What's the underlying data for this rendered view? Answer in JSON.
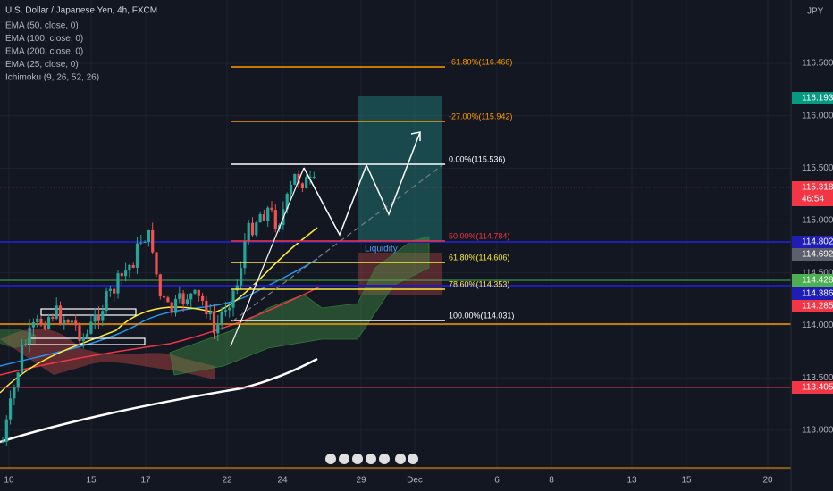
{
  "header": {
    "title": "U.S. Dollar / Japanese Yen, 4h, FXCM",
    "indicators": [
      "EMA (50, close, 0)",
      "EMA (100, close, 0)",
      "EMA (200, close, 0)",
      "EMA (25, close, 0)",
      "Ichimoku (9, 26, 52, 26)"
    ]
  },
  "currency": "JPY",
  "price_axis": [
    "116.500",
    "116.000",
    "115.500",
    "115.000",
    "114.500",
    "114.000",
    "113.500",
    "113.000"
  ],
  "price_tags": [
    {
      "label": "116.193",
      "color": "#089981"
    },
    {
      "label": "115.318",
      "color": "#f23645",
      "countdown": "46:54"
    },
    {
      "label": "114.802",
      "color": "#1e1eb4"
    },
    {
      "label": "114.692",
      "color": "#5d606b"
    },
    {
      "label": "114.428",
      "color": "#4caf50"
    },
    {
      "label": "114.386",
      "color": "#1e1eb4"
    },
    {
      "label": "114.285",
      "color": "#f23645"
    },
    {
      "label": "113.405",
      "color": "#f23645"
    }
  ],
  "fib_levels": [
    {
      "label": "-61.80%(116.466)",
      "color": "#ff9800"
    },
    {
      "label": "-27.00%(115.942)",
      "color": "#ff9800"
    },
    {
      "label": "0.00%(115.536)",
      "color": "#ffffff"
    },
    {
      "label": "50.00%(114.784)",
      "color": "#f23645"
    },
    {
      "label": "61.80%(114.606)",
      "color": "#ffeb3b"
    },
    {
      "label": "78.60%(114.353)",
      "color": "#ffeb3b"
    },
    {
      "label": "100.00%(114.031)",
      "color": "#ffffff"
    }
  ],
  "annotation": "Liquidity",
  "time_axis": [
    "10",
    "15",
    "17",
    "22",
    "24",
    "29",
    "Dec",
    "6",
    "8",
    "13",
    "15",
    "20"
  ]
}
